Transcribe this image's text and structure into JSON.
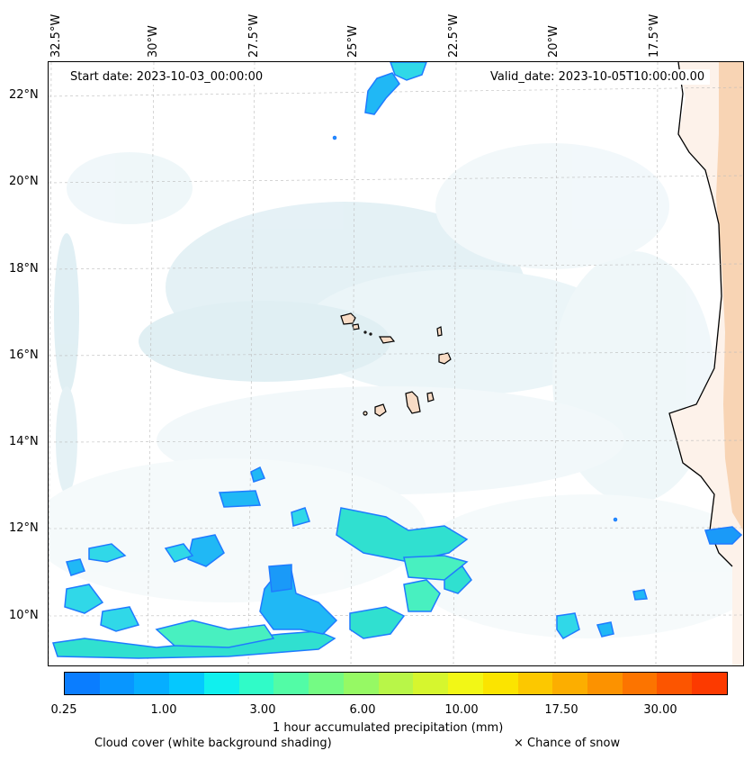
{
  "map": {
    "start_date": "Start date: 2023-10-03_00:00:00",
    "valid_date": "Valid_date: 2023-10-05T10:00:00.00",
    "longitude_labels": [
      "32.5°W",
      "30°W",
      "27.5°W",
      "25°W",
      "22.5°W",
      "20°W",
      "17.5°W"
    ],
    "latitude_labels": [
      "22°N",
      "20°N",
      "18°N",
      "16°N",
      "14°N",
      "12°N",
      "10°N"
    ]
  },
  "colorbar": {
    "title": "1 hour accumulated precipitation (mm)",
    "tick_labels": [
      "0.25",
      "1.00",
      "3.00",
      "6.00",
      "10.00",
      "17.50",
      "30.00"
    ],
    "colors": [
      "#0a7dff",
      "#0896ff",
      "#06aeff",
      "#05c8fe",
      "#10f0ee",
      "#30fbc8",
      "#52fca6",
      "#74fb84",
      "#96f964",
      "#b8f648",
      "#d6f62e",
      "#f2f716",
      "#fbe400",
      "#fcc800",
      "#fcae00",
      "#fc9200",
      "#fc7400",
      "#fc5500",
      "#fc3a00"
    ]
  },
  "legend": {
    "cloud_cover": "Cloud cover (white background shading)",
    "snow": "× Chance of snow"
  }
}
